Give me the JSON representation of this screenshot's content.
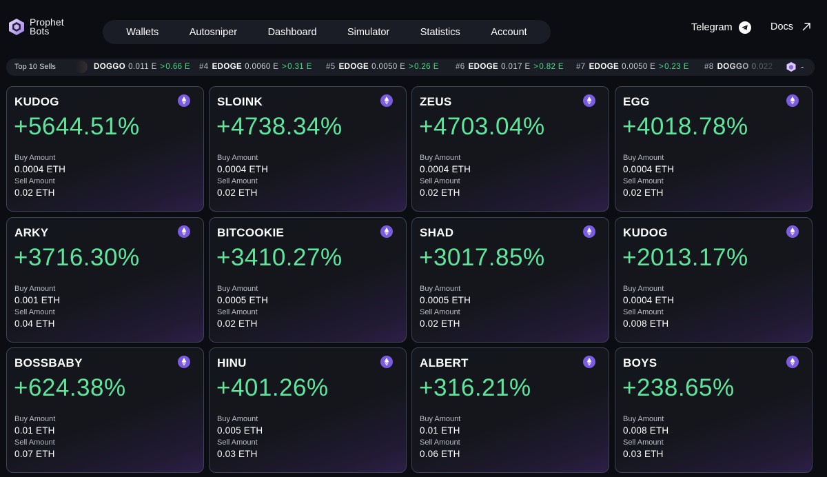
{
  "brand": {
    "line1": "Prophet",
    "line2": "Bots"
  },
  "nav": [
    {
      "label": "Wallets"
    },
    {
      "label": "Autosniper"
    },
    {
      "label": "Dashboard"
    },
    {
      "label": "Simulator"
    },
    {
      "label": "Statistics"
    },
    {
      "label": "Account"
    }
  ],
  "links": {
    "telegram": "Telegram",
    "docs": "Docs"
  },
  "ticker": {
    "label": "Top 10 Sells",
    "items": [
      {
        "rank": "",
        "token": "DOGGO",
        "buy": "0.011 E",
        "arrow": ">",
        "sell": "0.66 E"
      },
      {
        "rank": "#4",
        "token": "EDOGE",
        "buy": "0.0060 E",
        "arrow": ">",
        "sell": "0.31 E"
      },
      {
        "rank": "#5",
        "token": "EDOGE",
        "buy": "0.0050 E",
        "arrow": ">",
        "sell": "0.26 E"
      },
      {
        "rank": "#6",
        "token": "EDOGE",
        "buy": "0.017 E",
        "arrow": ">",
        "sell": "0.82 E"
      },
      {
        "rank": "#7",
        "token": "EDOGE",
        "buy": "0.0050 E",
        "arrow": ">",
        "sell": "0.23 E"
      },
      {
        "rank": "#8",
        "token": "DOGGO",
        "buy": "0.022",
        "arrow": "",
        "sell": ""
      }
    ],
    "end": "-"
  },
  "cards": [
    {
      "name": "KUDOG",
      "pct": "+5644.51%",
      "buy_label": "Buy Amount",
      "buy": "0.0004 ETH",
      "sell_label": "Sell Amount",
      "sell": "0.02 ETH"
    },
    {
      "name": "SLOINK",
      "pct": "+4738.34%",
      "buy_label": "Buy Amount",
      "buy": "0.0004 ETH",
      "sell_label": "Sell Amount",
      "sell": "0.02 ETH"
    },
    {
      "name": "ZEUS",
      "pct": "+4703.04%",
      "buy_label": "Buy Amount",
      "buy": "0.0004 ETH",
      "sell_label": "Sell Amount",
      "sell": "0.02 ETH"
    },
    {
      "name": "EGG",
      "pct": "+4018.78%",
      "buy_label": "Buy Amount",
      "buy": "0.0004 ETH",
      "sell_label": "Sell Amount",
      "sell": "0.02 ETH"
    },
    {
      "name": "ARKY",
      "pct": "+3716.30%",
      "buy_label": "Buy Amount",
      "buy": "0.001 ETH",
      "sell_label": "Sell Amount",
      "sell": "0.04 ETH"
    },
    {
      "name": "BITCOOKIE",
      "pct": "+3410.27%",
      "buy_label": "Buy Amount",
      "buy": "0.0005 ETH",
      "sell_label": "Sell Amount",
      "sell": "0.02 ETH"
    },
    {
      "name": "SHAD",
      "pct": "+3017.85%",
      "buy_label": "Buy Amount",
      "buy": "0.0005 ETH",
      "sell_label": "Sell Amount",
      "sell": "0.02 ETH"
    },
    {
      "name": "KUDOG",
      "pct": "+2013.17%",
      "buy_label": "Buy Amount",
      "buy": "0.0004 ETH",
      "sell_label": "Sell Amount",
      "sell": "0.008 ETH"
    },
    {
      "name": "BOSSBABY",
      "pct": "+624.38%",
      "buy_label": "Buy Amount",
      "buy": "0.01 ETH",
      "sell_label": "Sell Amount",
      "sell": "0.07 ETH"
    },
    {
      "name": "HINU",
      "pct": "+401.26%",
      "buy_label": "Buy Amount",
      "buy": "0.005 ETH",
      "sell_label": "Sell Amount",
      "sell": "0.03 ETH"
    },
    {
      "name": "ALBERT",
      "pct": "+316.21%",
      "buy_label": "Buy Amount",
      "buy": "0.01 ETH",
      "sell_label": "Sell Amount",
      "sell": "0.06 ETH"
    },
    {
      "name": "BOYS",
      "pct": "+238.65%",
      "buy_label": "Buy Amount",
      "buy": "0.008 ETH",
      "sell_label": "Sell Amount",
      "sell": "0.03 ETH"
    }
  ],
  "colors": {
    "background": "#0b0d12",
    "panel": "#1a1d25",
    "accent_green": "#5ee79c",
    "eth_badge": "#7b5ce0",
    "card_border": "#3c4353"
  },
  "icons": {
    "logo": "prophet-hexagon-logo",
    "telegram": "telegram-icon",
    "docs": "arrow-up-right-icon",
    "chain": "ethereum-icon"
  }
}
